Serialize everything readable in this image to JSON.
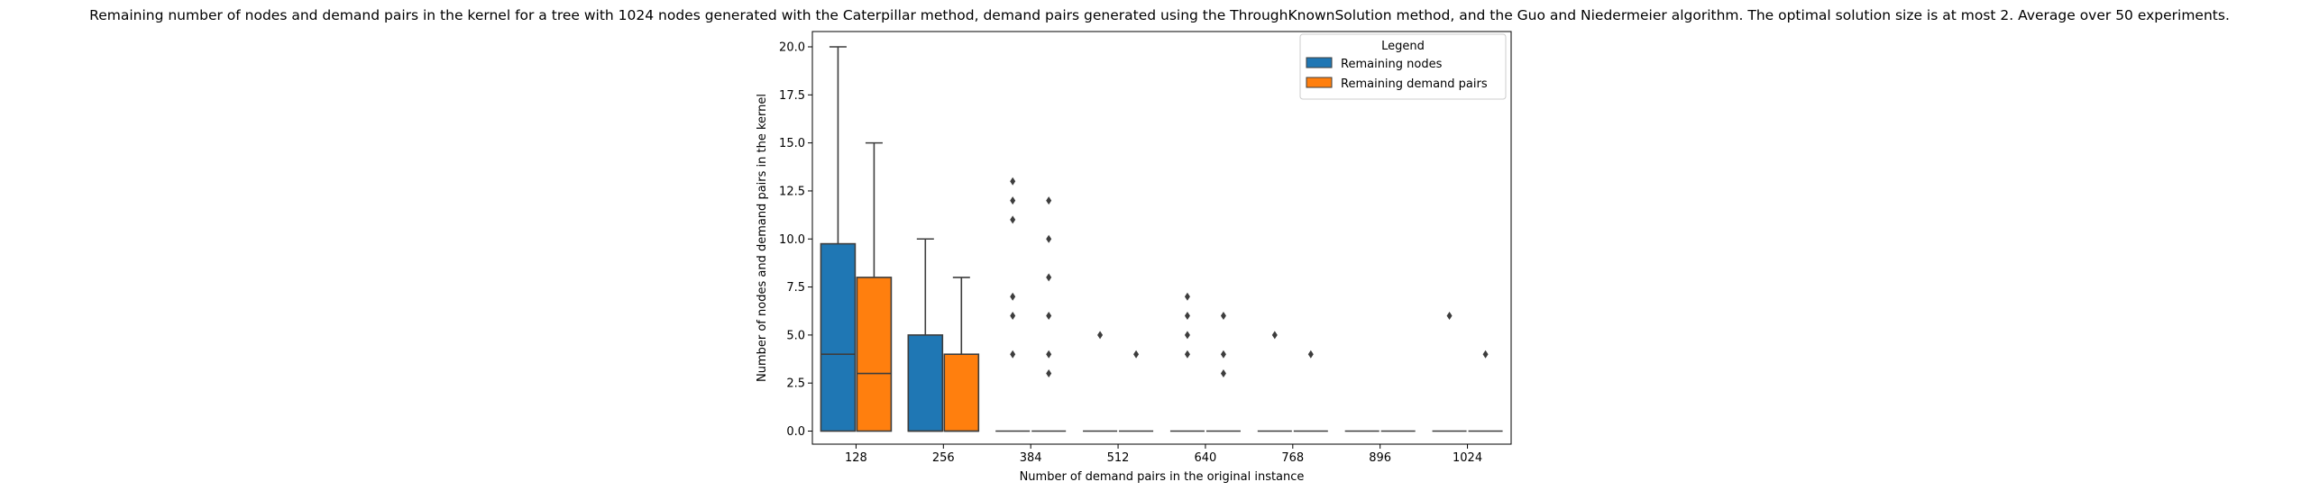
{
  "chart_data": {
    "type": "box",
    "title": "Remaining number of nodes and demand pairs in the kernel for a tree with 1024 nodes generated with the Caterpillar method, demand pairs generated using the ThroughKnownSolution method, and the Guo and Niedermeier algorithm. The optimal solution size is at most 2. Average over 50 experiments.",
    "xlabel": "Number of demand pairs in the original instance",
    "ylabel": "Number of nodes and demand pairs in the kernel",
    "categories": [
      "128",
      "256",
      "384",
      "512",
      "640",
      "768",
      "896",
      "1024"
    ],
    "ylim": [
      -1,
      21
    ],
    "yticks": [
      0.0,
      2.5,
      5.0,
      7.5,
      10.0,
      12.5,
      15.0,
      17.5,
      20.0
    ],
    "ytick_labels": [
      "0.0",
      "2.5",
      "5.0",
      "7.5",
      "10.0",
      "12.5",
      "15.0",
      "17.5",
      "20.0"
    ],
    "grid": false,
    "legend": {
      "title": "Legend",
      "position": "top-right"
    },
    "series": [
      {
        "name": "Remaining nodes",
        "color": "#1f77b4",
        "boxes": [
          {
            "q1": 0,
            "median": 4,
            "q3": 9.75,
            "whisker_low": 0,
            "whisker_high": 20,
            "outliers": []
          },
          {
            "q1": 0,
            "median": 0,
            "q3": 5,
            "whisker_low": 0,
            "whisker_high": 10,
            "outliers": []
          },
          {
            "q1": 0,
            "median": 0,
            "q3": 0,
            "whisker_low": 0,
            "whisker_high": 0,
            "outliers": [
              13,
              12,
              11,
              7,
              6,
              4
            ]
          },
          {
            "q1": 0,
            "median": 0,
            "q3": 0,
            "whisker_low": 0,
            "whisker_high": 0,
            "outliers": [
              5
            ]
          },
          {
            "q1": 0,
            "median": 0,
            "q3": 0,
            "whisker_low": 0,
            "whisker_high": 0,
            "outliers": [
              7,
              6,
              5,
              4
            ]
          },
          {
            "q1": 0,
            "median": 0,
            "q3": 0,
            "whisker_low": 0,
            "whisker_high": 0,
            "outliers": [
              5
            ]
          },
          {
            "q1": 0,
            "median": 0,
            "q3": 0,
            "whisker_low": 0,
            "whisker_high": 0,
            "outliers": []
          },
          {
            "q1": 0,
            "median": 0,
            "q3": 0,
            "whisker_low": 0,
            "whisker_high": 0,
            "outliers": [
              6
            ]
          }
        ]
      },
      {
        "name": "Remaining demand pairs",
        "color": "#ff7f0e",
        "boxes": [
          {
            "q1": 0,
            "median": 3,
            "q3": 8,
            "whisker_low": 0,
            "whisker_high": 15,
            "outliers": []
          },
          {
            "q1": 0,
            "median": 0,
            "q3": 4,
            "whisker_low": 0,
            "whisker_high": 8,
            "outliers": []
          },
          {
            "q1": 0,
            "median": 0,
            "q3": 0,
            "whisker_low": 0,
            "whisker_high": 0,
            "outliers": [
              12,
              10,
              8,
              6,
              4,
              3
            ]
          },
          {
            "q1": 0,
            "median": 0,
            "q3": 0,
            "whisker_low": 0,
            "whisker_high": 0,
            "outliers": [
              4
            ]
          },
          {
            "q1": 0,
            "median": 0,
            "q3": 0,
            "whisker_low": 0,
            "whisker_high": 0,
            "outliers": [
              6,
              4,
              3
            ]
          },
          {
            "q1": 0,
            "median": 0,
            "q3": 0,
            "whisker_low": 0,
            "whisker_high": 0,
            "outliers": [
              4
            ]
          },
          {
            "q1": 0,
            "median": 0,
            "q3": 0,
            "whisker_low": 0,
            "whisker_high": 0,
            "outliers": []
          },
          {
            "q1": 0,
            "median": 0,
            "q3": 0,
            "whisker_low": 0,
            "whisker_high": 0,
            "outliers": [
              4
            ]
          }
        ]
      }
    ]
  }
}
